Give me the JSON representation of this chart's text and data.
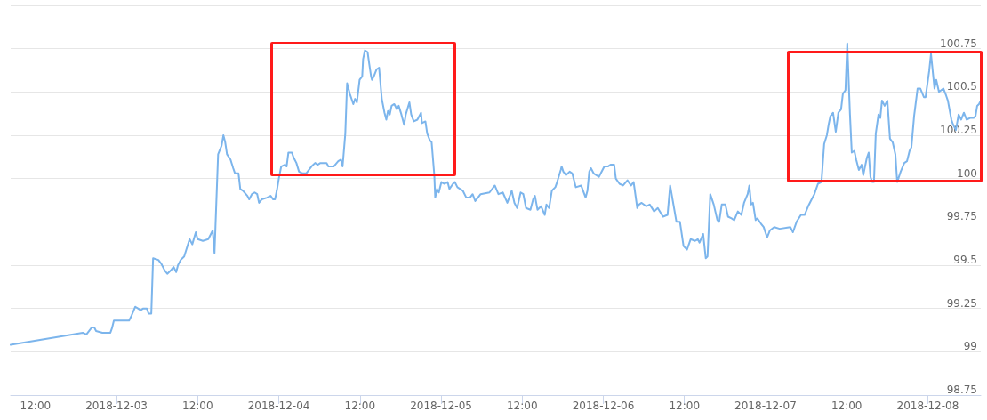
{
  "chart_data": {
    "type": "line",
    "color": "#7cb5ec",
    "x": [
      "2018-12-02T08:20",
      "2018-12-02T19:00",
      "2018-12-02T19:32",
      "2018-12-02T20:19",
      "2018-12-02T20:43",
      "2018-12-02T20:58",
      "2018-12-02T21:54",
      "2018-12-02T23:05",
      "2018-12-02T23:21",
      "2018-12-02T23:36",
      "2018-12-03T01:51",
      "2018-12-03T02:14",
      "2018-12-03T02:46",
      "2018-12-03T03:10",
      "2018-12-03T03:33",
      "2018-12-03T03:57",
      "2018-12-03T04:29",
      "2018-12-03T04:44",
      "2018-12-03T05:08",
      "2018-12-03T05:24",
      "2018-12-03T06:11",
      "2018-12-03T06:35",
      "2018-12-03T07:07",
      "2018-12-03T07:30",
      "2018-12-03T08:02",
      "2018-12-03T08:26",
      "2018-12-03T08:49",
      "2018-12-03T09:05",
      "2018-12-03T09:29",
      "2018-12-03T10:00",
      "2018-12-03T10:24",
      "2018-12-03T10:48",
      "2018-12-03T11:12",
      "2018-12-03T11:43",
      "2018-12-03T11:59",
      "2018-12-03T12:46",
      "2018-12-03T13:34",
      "2018-12-03T14:13",
      "2018-12-03T14:29",
      "2018-12-03T15:01",
      "2018-12-03T15:32",
      "2018-12-03T15:48",
      "2018-12-03T16:04",
      "2018-12-03T16:20",
      "2018-12-03T16:51",
      "2018-12-03T17:15",
      "2018-12-03T17:31",
      "2018-12-03T18:02",
      "2018-12-03T18:18",
      "2018-12-03T18:42",
      "2018-12-03T19:21",
      "2018-12-03T19:37",
      "2018-12-03T20:01",
      "2018-12-03T20:25",
      "2018-12-03T20:48",
      "2018-12-03T21:04",
      "2018-12-03T21:28",
      "2018-12-03T22:15",
      "2018-12-03T22:47",
      "2018-12-03T23:10",
      "2018-12-03T23:26",
      "2018-12-03T23:42",
      "2018-12-04T00:00",
      "2018-12-04T00:21",
      "2018-12-04T00:53",
      "2018-12-04T01:09",
      "2018-12-04T01:25",
      "2018-12-04T01:56",
      "2018-12-04T02:12",
      "2018-12-04T02:36",
      "2018-12-04T02:59",
      "2018-12-04T03:31",
      "2018-12-04T04:03",
      "2018-12-04T04:50",
      "2018-12-04T05:22",
      "2018-12-04T05:45",
      "2018-12-04T06:09",
      "2018-12-04T07:04",
      "2018-12-04T07:20",
      "2018-12-04T08:07",
      "2018-12-04T08:47",
      "2018-12-04T09:11",
      "2018-12-04T09:26",
      "2018-12-04T09:50",
      "2018-12-04T10:06",
      "2018-12-04T10:30",
      "2018-12-04T11:01",
      "2018-12-04T11:17",
      "2018-12-04T11:33",
      "2018-12-04T11:57",
      "2018-12-04T12:20",
      "2018-12-04T12:28",
      "2018-12-04T12:44",
      "2018-12-04T13:08",
      "2018-12-04T13:23",
      "2018-12-04T13:39",
      "2018-12-04T13:47",
      "2018-12-04T14:03",
      "2018-12-04T14:27",
      "2018-12-04T14:50",
      "2018-12-04T14:58",
      "2018-12-04T15:14",
      "2018-12-04T15:38",
      "2018-12-04T15:54",
      "2018-12-04T16:09",
      "2018-12-04T16:25",
      "2018-12-04T16:41",
      "2018-12-04T17:05",
      "2018-12-04T17:28",
      "2018-12-04T17:44",
      "2018-12-04T18:08",
      "2018-12-04T18:32",
      "2018-12-04T18:47",
      "2018-12-04T19:19",
      "2018-12-04T19:35",
      "2018-12-04T19:58",
      "2018-12-04T20:30",
      "2018-12-04T21:02",
      "2018-12-04T21:10",
      "2018-12-04T21:41",
      "2018-12-04T21:57",
      "2018-12-04T22:21",
      "2018-12-04T22:36",
      "2018-12-04T23:00",
      "2018-12-04T23:08",
      "2018-12-04T23:24",
      "2018-12-04T23:40",
      "2018-12-05T00:03",
      "2018-12-05T00:27",
      "2018-12-05T00:58",
      "2018-12-05T01:14",
      "2018-12-05T01:46",
      "2018-12-05T02:02",
      "2018-12-05T02:25",
      "2018-12-05T03:13",
      "2018-12-05T03:44",
      "2018-12-05T04:16",
      "2018-12-05T04:40",
      "2018-12-05T05:03",
      "2018-12-05T05:27",
      "2018-12-05T05:51",
      "2018-12-05T07:10",
      "2018-12-05T07:57",
      "2018-12-05T08:29",
      "2018-12-05T09:08",
      "2018-12-05T09:48",
      "2018-12-05T10:27",
      "2018-12-05T10:51",
      "2018-12-05T11:15",
      "2018-12-05T11:46",
      "2018-12-05T12:10",
      "2018-12-05T12:34",
      "2018-12-05T13:13",
      "2018-12-05T13:37",
      "2018-12-05T13:53",
      "2018-12-05T14:16",
      "2018-12-05T14:48",
      "2018-12-05T15:20",
      "2018-12-05T15:35",
      "2018-12-05T15:59",
      "2018-12-05T16:23",
      "2018-12-05T16:54",
      "2018-12-05T17:10",
      "2018-12-05T17:42",
      "2018-12-05T17:50",
      "2018-12-05T18:05",
      "2018-12-05T18:29",
      "2018-12-05T19:01",
      "2018-12-05T19:24",
      "2018-12-05T19:56",
      "2018-12-05T20:43",
      "2018-12-05T21:23",
      "2018-12-05T21:39",
      "2018-12-05T21:55",
      "2018-12-05T22:10",
      "2018-12-05T22:34",
      "2018-12-05T23:21",
      "2018-12-06T00:09",
      "2018-12-06T00:40",
      "2018-12-06T01:04",
      "2018-12-06T01:36",
      "2018-12-06T01:51",
      "2018-12-06T02:23",
      "2018-12-06T02:55",
      "2018-12-06T03:34",
      "2018-12-06T04:06",
      "2018-12-06T04:29",
      "2018-12-06T05:01",
      "2018-12-06T05:17",
      "2018-12-06T05:40",
      "2018-12-06T06:20",
      "2018-12-06T06:52",
      "2018-12-06T07:31",
      "2018-12-06T08:03",
      "2018-12-06T08:50",
      "2018-12-06T09:30",
      "2018-12-06T09:53",
      "2018-12-06T10:17",
      "2018-12-06T10:49",
      "2018-12-06T11:20",
      "2018-12-06T11:52",
      "2018-12-06T12:23",
      "2018-12-06T12:55",
      "2018-12-06T13:34",
      "2018-12-06T13:58",
      "2018-12-06T14:14",
      "2018-12-06T14:46",
      "2018-12-06T15:09",
      "2018-12-06T15:25",
      "2018-12-06T15:49",
      "2018-12-06T16:20",
      "2018-12-06T16:52",
      "2018-12-06T17:08",
      "2018-12-06T17:31",
      "2018-12-06T18:03",
      "2018-12-06T18:27",
      "2018-12-06T18:58",
      "2018-12-06T19:22",
      "2018-12-06T19:54",
      "2018-12-06T20:25",
      "2018-12-06T20:49",
      "2018-12-06T21:21",
      "2018-12-06T21:36",
      "2018-12-06T21:52",
      "2018-12-06T22:08",
      "2018-12-06T22:32",
      "2018-12-06T22:47",
      "2018-12-06T23:19",
      "2018-12-06T23:43",
      "2018-12-07T00:14",
      "2018-12-07T00:38",
      "2018-12-07T01:17",
      "2018-12-07T02:05",
      "2018-12-07T03:40",
      "2018-12-07T04:03",
      "2018-12-07T04:35",
      "2018-12-07T05:14",
      "2018-12-07T05:46",
      "2018-12-07T06:18",
      "2018-12-07T06:49",
      "2018-12-07T07:13",
      "2018-12-07T07:45",
      "2018-12-07T08:16",
      "2018-12-07T08:40",
      "2018-12-07T09:04",
      "2018-12-07T09:19",
      "2018-12-07T09:35",
      "2018-12-07T09:59",
      "2018-12-07T10:23",
      "2018-12-07T10:46",
      "2018-12-07T11:10",
      "2018-12-07T11:26",
      "2018-12-07T11:49",
      "2018-12-07T12:05",
      "2018-12-07T12:29",
      "2018-12-07T12:45",
      "2018-12-07T13:08",
      "2018-12-07T13:24",
      "2018-12-07T13:48",
      "2018-12-07T14:12",
      "2018-12-07T14:27",
      "2018-12-07T14:59",
      "2018-12-07T15:15",
      "2018-12-07T15:31",
      "2018-12-07T15:46",
      "2018-12-07T16:02",
      "2018-12-07T16:18",
      "2018-12-07T16:42",
      "2018-12-07T16:58",
      "2018-12-07T17:13",
      "2018-12-07T17:37",
      "2018-12-07T18:01",
      "2018-12-07T18:24",
      "2018-12-07T18:48",
      "2018-12-07T19:12",
      "2018-12-07T19:28",
      "2018-12-07T19:59",
      "2018-12-07T20:31",
      "2018-12-07T20:55",
      "2018-12-07T21:18",
      "2018-12-07T21:34",
      "2018-12-07T21:58",
      "2018-12-07T22:29",
      "2018-12-07T22:53",
      "2018-12-07T23:25",
      "2018-12-07T23:40",
      "2018-12-08T00:12",
      "2018-12-08T00:28",
      "2018-12-08T00:59",
      "2018-12-08T01:15",
      "2018-12-08T01:39",
      "2018-12-08T02:18",
      "2018-12-08T02:42",
      "2018-12-08T02:58",
      "2018-12-08T03:29",
      "2018-12-08T03:45",
      "2018-12-08T04:09",
      "2018-12-08T04:33",
      "2018-12-08T04:56",
      "2018-12-08T05:20",
      "2018-12-08T05:44",
      "2018-12-08T06:15",
      "2018-12-08T06:47",
      "2018-12-08T07:03",
      "2018-12-08T07:18",
      "2018-12-08T07:34",
      "2018-12-08T07:50"
    ],
    "values": [
      99.04,
      99.11,
      99.1,
      99.14,
      99.14,
      99.12,
      99.11,
      99.11,
      99.14,
      99.18,
      99.18,
      99.21,
      99.26,
      99.25,
      99.24,
      99.25,
      99.25,
      99.22,
      99.22,
      99.54,
      99.53,
      99.51,
      99.47,
      99.45,
      99.47,
      99.49,
      99.46,
      99.5,
      99.53,
      99.55,
      99.6,
      99.65,
      99.62,
      99.69,
      99.65,
      99.64,
      99.65,
      99.7,
      99.57,
      100.14,
      100.19,
      100.25,
      100.21,
      100.14,
      100.11,
      100.06,
      100.03,
      100.03,
      99.94,
      99.93,
      99.9,
      99.88,
      99.91,
      99.92,
      99.91,
      99.86,
      99.88,
      99.89,
      99.9,
      99.88,
      99.88,
      99.93,
      100.0,
      100.07,
      100.08,
      100.07,
      100.15,
      100.15,
      100.12,
      100.09,
      100.04,
      100.03,
      100.03,
      100.07,
      100.09,
      100.08,
      100.09,
      100.09,
      100.07,
      100.07,
      100.1,
      100.11,
      100.07,
      100.26,
      100.55,
      100.49,
      100.43,
      100.46,
      100.44,
      100.57,
      100.59,
      100.69,
      100.74,
      100.73,
      100.66,
      100.59,
      100.57,
      100.59,
      100.63,
      100.64,
      100.58,
      100.46,
      100.38,
      100.34,
      100.39,
      100.37,
      100.42,
      100.43,
      100.4,
      100.42,
      100.37,
      100.31,
      100.37,
      100.44,
      100.37,
      100.33,
      100.34,
      100.38,
      100.32,
      100.33,
      100.26,
      100.22,
      100.21,
      100.02,
      99.89,
      99.94,
      99.92,
      99.98,
      99.97,
      99.98,
      99.94,
      99.97,
      99.98,
      99.95,
      99.93,
      99.89,
      99.89,
      99.91,
      99.87,
      99.89,
      99.91,
      99.92,
      99.96,
      99.91,
      99.92,
      99.86,
      99.93,
      99.86,
      99.83,
      99.92,
      99.91,
      99.83,
      99.82,
      99.88,
      99.9,
      99.82,
      99.84,
      99.79,
      99.85,
      99.83,
      99.93,
      99.95,
      99.98,
      100.05,
      100.07,
      100.04,
      100.02,
      100.04,
      100.03,
      99.95,
      99.96,
      99.89,
      99.93,
      100.04,
      100.06,
      100.03,
      100.01,
      100.07,
      100.07,
      100.08,
      100.08,
      100.0,
      99.97,
      99.96,
      99.99,
      99.96,
      99.98,
      99.83,
      99.85,
      99.86,
      99.84,
      99.85,
      99.81,
      99.83,
      99.78,
      99.79,
      99.96,
      99.87,
      99.75,
      99.75,
      99.61,
      99.59,
      99.65,
      99.64,
      99.65,
      99.63,
      99.68,
      99.54,
      99.55,
      99.91,
      99.85,
      99.76,
      99.75,
      99.85,
      99.85,
      99.78,
      99.77,
      99.76,
      99.81,
      99.79,
      99.86,
      99.91,
      99.96,
      99.85,
      99.86,
      99.76,
      99.77,
      99.74,
      99.72,
      99.66,
      99.7,
      99.72,
      99.71,
      99.72,
      99.69,
      99.75,
      99.79,
      99.79,
      99.84,
      99.88,
      99.91,
      99.97,
      99.98,
      100.2,
      100.25,
      100.31,
      100.36,
      100.38,
      100.27,
      100.38,
      100.4,
      100.49,
      100.51,
      100.78,
      100.37,
      100.15,
      100.16,
      100.11,
      100.05,
      100.08,
      100.02,
      100.12,
      100.15,
      100.01,
      99.98,
      99.98,
      100.26,
      100.37,
      100.35,
      100.45,
      100.42,
      100.45,
      100.23,
      100.21,
      100.14,
      99.98,
      100.04,
      100.09,
      100.1,
      100.16,
      100.18,
      100.36,
      100.52,
      100.52,
      100.47,
      100.47,
      100.62,
      100.72,
      100.52,
      100.57,
      100.5,
      100.52,
      100.48,
      100.45,
      100.34,
      100.31,
      100.28,
      100.37,
      100.34,
      100.38,
      100.34,
      100.35,
      100.35,
      100.36,
      100.42,
      100.43,
      100.45
    ],
    "xlim": [
      "2018-12-02T08:20",
      "2018-12-08T07:50"
    ],
    "xticks": [
      {
        "value": "2018-12-02T12:00",
        "label": "12:00"
      },
      "2018-12-03",
      {
        "value": "2018-12-03T12:00",
        "label": "12:00"
      },
      "2018-12-04",
      {
        "value": "2018-12-04T12:00",
        "label": "12:00"
      },
      "2018-12-05",
      {
        "value": "2018-12-05T12:00",
        "label": "12:00"
      },
      "2018-12-06",
      {
        "value": "2018-12-06T12:00",
        "label": "12:00"
      },
      "2018-12-07",
      {
        "value": "2018-12-07T12:00",
        "label": "12:00"
      },
      "2018-12-08"
    ],
    "ylim": [
      98.75,
      101
    ],
    "yticks": [
      98.75,
      99,
      99.25,
      99.5,
      99.75,
      100,
      100.25,
      100.5,
      100.75,
      {
        "value": 101,
        "label": null
      }
    ],
    "grid": "y",
    "marker": "none",
    "line_style": "solid"
  }
}
